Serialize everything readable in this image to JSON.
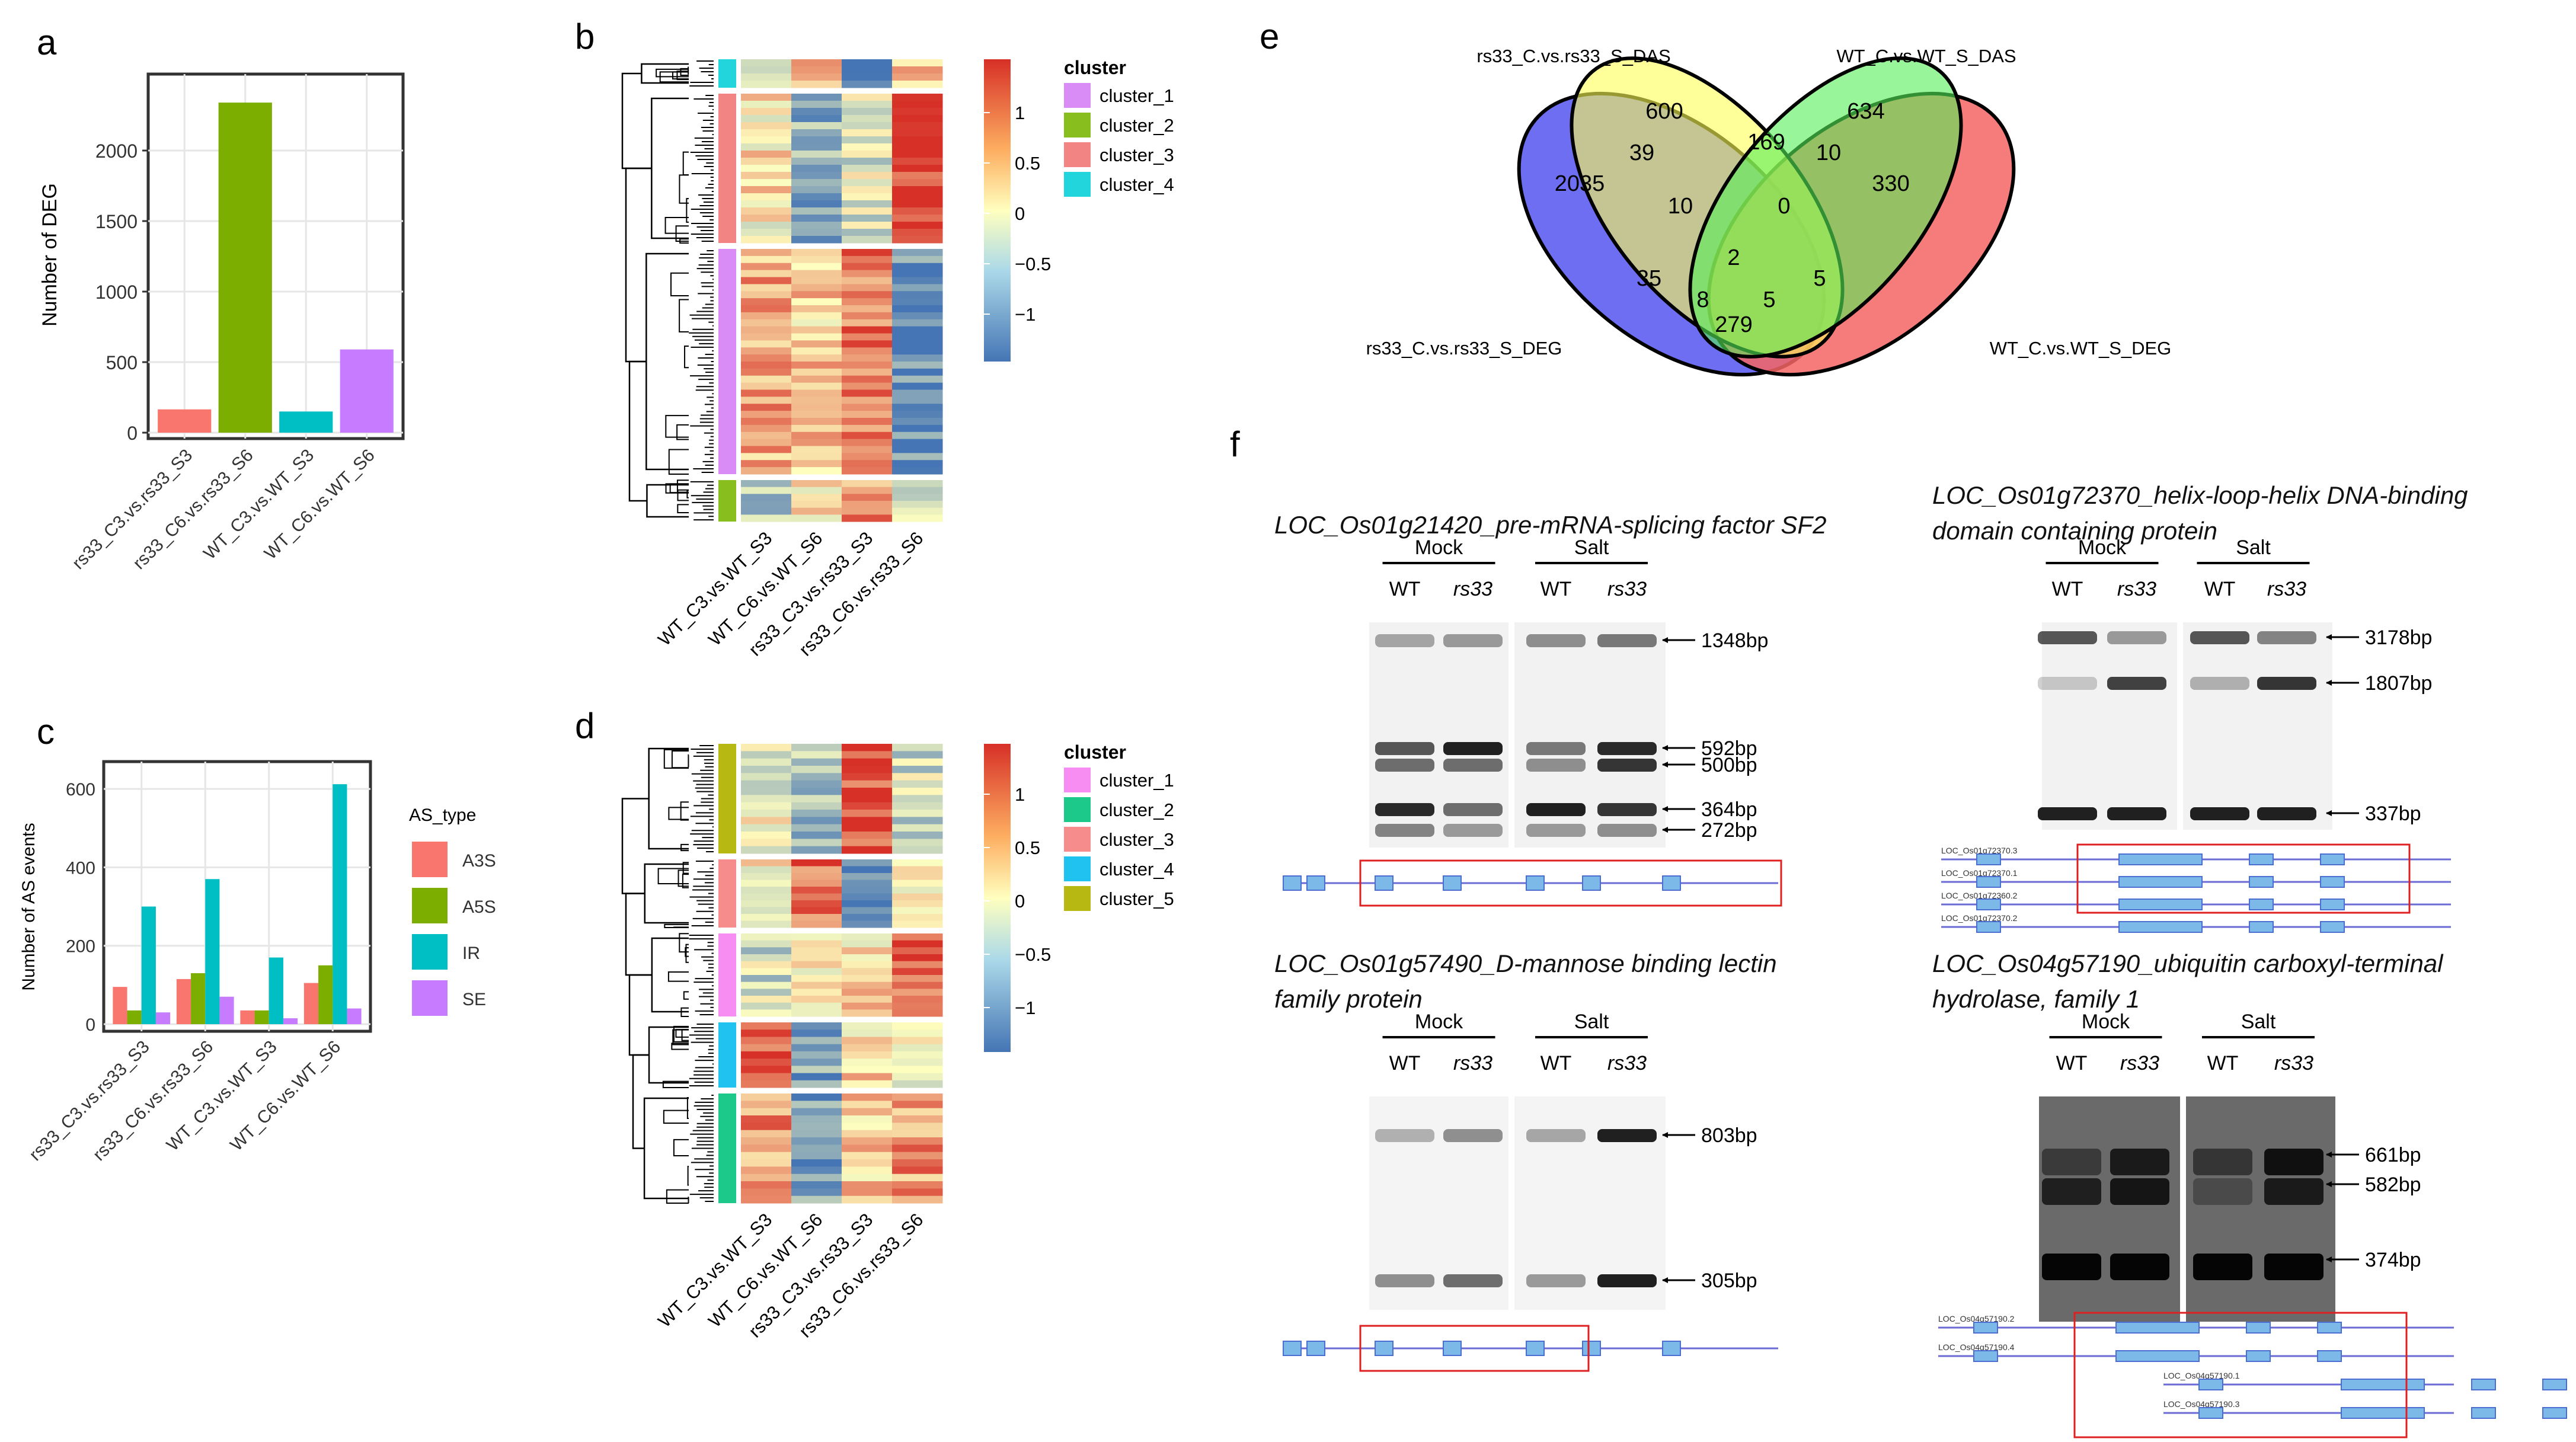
{
  "panels": {
    "a": "a",
    "b": "b",
    "c": "c",
    "d": "d",
    "e": "e",
    "f": "f"
  },
  "colors": {
    "deg_bars": [
      "#f8766d",
      "#7cae00",
      "#00bfc4",
      "#c77cff"
    ],
    "as_types": [
      "#f8766d",
      "#7cae00",
      "#00bfc4",
      "#c77cff"
    ],
    "heat_low": "#4575b4",
    "heat_mid": "#ffffbf",
    "heat_high": "#d73027",
    "cluster_b": [
      "#d98cf5",
      "#88bf1f",
      "#f38484",
      "#22d5dd"
    ],
    "cluster_d": [
      "#f78cf2",
      "#1dc98a",
      "#f78c8c",
      "#20c2ef",
      "#b8b813"
    ],
    "venn": [
      "#5555f0",
      "#ffff55",
      "#55ee55",
      "#f56565"
    ]
  },
  "chart_data": [
    {
      "type": "bar",
      "panel": "a",
      "categories": [
        "rs33_C3.vs.rs33_S3",
        "rs33_C6.vs.rs33_S6",
        "WT_C3.vs.WT_S3",
        "WT_C6.vs.WT_S6"
      ],
      "values": [
        165,
        2340,
        150,
        590
      ],
      "title": "",
      "xlabel": "",
      "ylabel": "Number of DEG",
      "ylim": [
        0,
        2500
      ],
      "yticks": [
        "0",
        "500",
        "1000",
        "1500",
        "2000"
      ],
      "grid": true
    },
    {
      "type": "bar",
      "panel": "c",
      "categories": [
        "rs33_C3.vs.rs33_S3",
        "rs33_C6.vs.rs33_S6",
        "WT_C3.vs.WT_S3",
        "WT_C6.vs.WT_S6"
      ],
      "series": [
        {
          "name": "A3S",
          "values": [
            95,
            115,
            35,
            105
          ]
        },
        {
          "name": "A5S",
          "values": [
            35,
            130,
            35,
            150
          ]
        },
        {
          "name": "IR",
          "values": [
            300,
            370,
            170,
            612
          ]
        },
        {
          "name": "SE",
          "values": [
            30,
            70,
            15,
            40
          ]
        }
      ],
      "ylabel": "Number of AS events",
      "ylim": [
        0,
        650
      ],
      "yticks": [
        "0",
        "200",
        "400",
        "600"
      ],
      "legend_title": "AS_type",
      "legend": "right",
      "grid": true
    },
    {
      "type": "heatmap",
      "panel": "b",
      "columns": [
        "WT_C3.vs.WT_S3",
        "WT_C6.vs.WT_S6",
        "rs33_C3.vs.rs33_S3",
        "rs33_C6.vs.rs33_S6"
      ],
      "scale_ticks": [
        "1",
        "0.5",
        "0",
        "−0.5",
        "−1"
      ],
      "legend_title": "cluster",
      "clusters": [
        "cluster_1",
        "cluster_2",
        "cluster_3",
        "cluster_4"
      ]
    },
    {
      "type": "heatmap",
      "panel": "d",
      "columns": [
        "WT_C3.vs.WT_S3",
        "WT_C6.vs.WT_S6",
        "rs33_C3.vs.rs33_S3",
        "rs33_C6.vs.rs33_S6"
      ],
      "scale_ticks": [
        "1",
        "0.5",
        "0",
        "−0.5",
        "−1"
      ],
      "legend_title": "cluster",
      "clusters": [
        "cluster_1",
        "cluster_2",
        "cluster_3",
        "cluster_4",
        "cluster_5"
      ]
    }
  ],
  "venn": {
    "set_labels": [
      "rs33_C.vs.rs33_S_DAS",
      "WT_C.vs.WT_S_DAS",
      "rs33_C.vs.rs33_S_DEG",
      "WT_C.vs.WT_S_DEG"
    ],
    "counts": [
      "600",
      "634",
      "2035",
      "39",
      "169",
      "10",
      "330",
      "10",
      "0",
      "2",
      "35",
      "5",
      "8",
      "5",
      "279"
    ]
  },
  "gels": [
    {
      "title_lines": [
        "LOC_Os01g21420_pre-mRNA-splicing factor SF2"
      ],
      "groups": [
        "Mock",
        "Salt"
      ],
      "lanes": [
        "WT",
        "rs33",
        "WT",
        "rs33"
      ],
      "bands": [
        "1348bp",
        "592bp",
        "500bp",
        "364bp",
        "272bp"
      ]
    },
    {
      "title_lines": [
        "LOC_Os01g72370_helix-loop-helix DNA-binding",
        "domain containing protein"
      ],
      "groups": [
        "Mock",
        "Salt"
      ],
      "lanes": [
        "WT",
        "rs33",
        "WT",
        "rs33"
      ],
      "bands": [
        "3178bp",
        "1807bp",
        "337bp"
      ],
      "model_labels": [
        "LOC_Os01g72370.3",
        "LOC_Os01g72370.1",
        "LOC_Os01g72360.2",
        "LOC_Os01g72370.2"
      ]
    },
    {
      "title_lines": [
        "LOC_Os01g57490_D-mannose binding lectin",
        "family protein"
      ],
      "groups": [
        "Mock",
        "Salt"
      ],
      "lanes": [
        "WT",
        "rs33",
        "WT",
        "rs33"
      ],
      "bands": [
        "803bp",
        "305bp"
      ]
    },
    {
      "title_lines": [
        "LOC_Os04g57190_ubiquitin carboxyl-terminal",
        "hydrolase, family 1"
      ],
      "groups": [
        "Mock",
        "Salt"
      ],
      "lanes": [
        "WT",
        "rs33",
        "WT",
        "rs33"
      ],
      "bands": [
        "661bp",
        "582bp",
        "374bp"
      ],
      "model_labels": [
        "LOC_Os04g57190.2",
        "LOC_Os04g57190.4",
        "LOC_Os04g57190.1",
        "LOC_Os04g57190.3"
      ]
    }
  ]
}
